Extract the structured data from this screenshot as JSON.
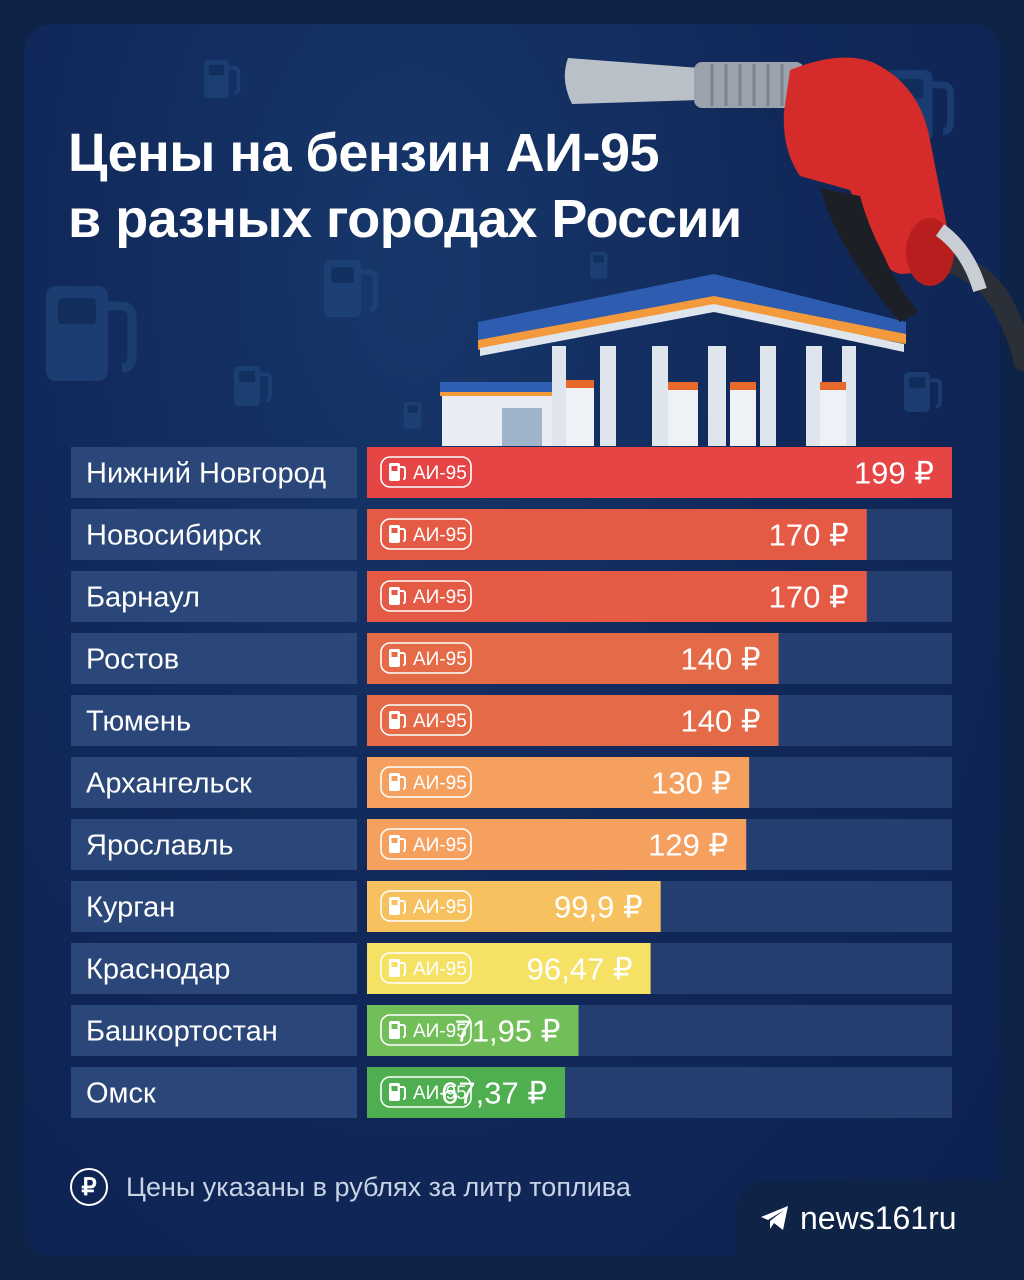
{
  "title": {
    "line1": "Цены на бензин АИ-95",
    "line2": "в разных городах России"
  },
  "chart_data": {
    "type": "bar",
    "orientation": "horizontal",
    "fuel_badge": "АИ-95",
    "unit": "₽",
    "categories": [
      "Нижний Новгород",
      "Новосибирск",
      "Барнаул",
      "Ростов",
      "Тюмень",
      "Архангельск",
      "Ярославль",
      "Курган",
      "Краснодар",
      "Башкортостан",
      "Омск"
    ],
    "values": [
      199,
      170,
      170,
      140,
      140,
      130,
      129,
      99.9,
      96.47,
      71.95,
      67.37
    ],
    "value_labels": [
      "199 ₽",
      "170 ₽",
      "170 ₽",
      "140 ₽",
      "140 ₽",
      "130 ₽",
      "129 ₽",
      "99,9 ₽",
      "96,47 ₽",
      "71,95 ₽",
      "67,37 ₽"
    ],
    "colors": [
      "#e64545",
      "#e55a45",
      "#e55a45",
      "#e56a47",
      "#e56a47",
      "#f6a05f",
      "#f6a05f",
      "#f6c15e",
      "#f5e163",
      "#72bf5a",
      "#4eae50"
    ],
    "xlim": [
      0,
      199
    ]
  },
  "footer": {
    "ruble_symbol": "₽",
    "note": "Цены указаны в рублях за литр топлива"
  },
  "brand": {
    "name": "news161ru",
    "icon": "telegram-icon"
  },
  "colors": {
    "background": "#11295a",
    "row_bg": "#233e6f",
    "label_bg": "#2b4779",
    "text": "#ffffff"
  }
}
